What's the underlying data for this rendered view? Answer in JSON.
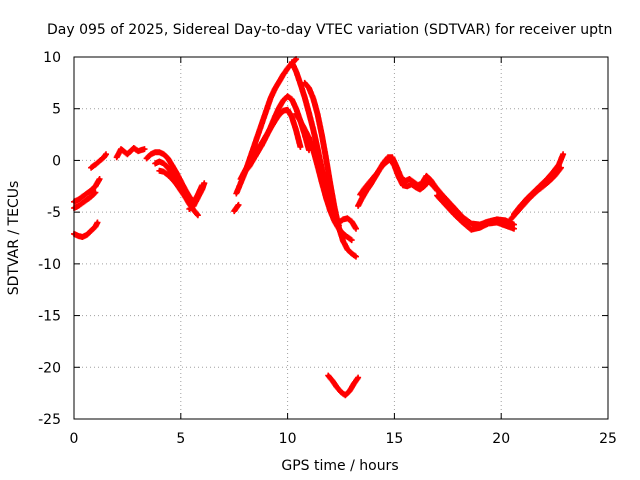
{
  "chart_data": {
    "type": "scatter",
    "title": "Day 095 of 2025, Sidereal Day-to-day VTEC variation (SDTVAR) for receiver uptn",
    "xlabel": "GPS time / hours",
    "ylabel": "SDTVAR / TECUs",
    "xlim": [
      0,
      25
    ],
    "ylim": [
      -25,
      10
    ],
    "xticks": [
      0,
      5,
      10,
      15,
      20,
      25
    ],
    "yticks": [
      -25,
      -20,
      -15,
      -10,
      -5,
      0,
      5,
      10
    ],
    "grid": true,
    "legend": "none",
    "marker": "plus",
    "color": "#ff0000",
    "series": [
      {
        "name": "s1",
        "x": [
          0.0,
          0.2,
          0.4,
          0.6,
          0.8,
          1.0,
          1.2
        ],
        "y": [
          -4.0,
          -3.8,
          -3.5,
          -3.2,
          -2.9,
          -2.5,
          -1.8
        ]
      },
      {
        "name": "s2",
        "x": [
          0.0,
          0.2,
          0.4,
          0.6,
          0.8,
          1.0
        ],
        "y": [
          -4.6,
          -4.4,
          -4.1,
          -3.8,
          -3.5,
          -3.1
        ]
      },
      {
        "name": "s3",
        "x": [
          0.0,
          0.2,
          0.4,
          0.6,
          0.8,
          1.0,
          1.1
        ],
        "y": [
          -7.1,
          -7.3,
          -7.4,
          -7.2,
          -6.8,
          -6.4,
          -6.0
        ]
      },
      {
        "name": "s4",
        "x": [
          0.8,
          1.0,
          1.4,
          1.5
        ],
        "y": [
          -0.7,
          -0.4,
          0.3,
          0.6
        ]
      },
      {
        "name": "s5",
        "x": [
          2.0,
          2.2,
          2.5,
          2.8,
          3.0,
          3.3
        ],
        "y": [
          0.3,
          1.1,
          0.6,
          1.2,
          0.9,
          1.1
        ]
      },
      {
        "name": "s6",
        "x": [
          3.4,
          3.6,
          3.8,
          4.0,
          4.2,
          4.4,
          4.6,
          4.8,
          5.0,
          5.2,
          5.4,
          5.6
        ],
        "y": [
          0.2,
          0.6,
          0.8,
          0.8,
          0.6,
          0.2,
          -0.5,
          -1.2,
          -2.0,
          -2.8,
          -3.5,
          -4.0
        ]
      },
      {
        "name": "s7",
        "x": [
          3.8,
          4.0,
          4.2,
          4.4,
          4.6,
          4.8,
          5.0,
          5.2,
          5.4,
          5.6,
          5.8
        ],
        "y": [
          -0.3,
          -0.1,
          -0.3,
          -0.7,
          -1.3,
          -2.0,
          -2.8,
          -3.5,
          -4.2,
          -4.8,
          -5.3
        ]
      },
      {
        "name": "s8",
        "x": [
          4.0,
          4.2,
          4.4,
          4.6,
          4.8,
          5.0,
          5.2,
          5.4,
          5.6,
          5.8,
          6.0
        ],
        "y": [
          -1.0,
          -1.1,
          -1.4,
          -1.8,
          -2.3,
          -2.9,
          -3.5,
          -4.0,
          -4.1,
          -3.3,
          -2.4
        ]
      },
      {
        "name": "s9",
        "x": [
          5.4,
          5.6,
          5.8,
          6.0,
          6.1
        ],
        "y": [
          -4.7,
          -4.4,
          -3.6,
          -2.8,
          -2.2
        ]
      },
      {
        "name": "s10",
        "x": [
          7.5,
          7.7
        ],
        "y": [
          -4.9,
          -4.3
        ]
      },
      {
        "name": "s11",
        "x": [
          7.6,
          7.8,
          8.0,
          8.2,
          8.4,
          8.6,
          8.8,
          9.0,
          9.2,
          9.4,
          9.6,
          9.8,
          10.0,
          10.2,
          10.4
        ],
        "y": [
          -3.2,
          -2.2,
          -1.2,
          0.0,
          1.2,
          2.4,
          3.6,
          4.8,
          6.0,
          6.9,
          7.6,
          8.3,
          8.9,
          9.4,
          9.8
        ]
      },
      {
        "name": "s12",
        "x": [
          7.8,
          8.0,
          8.2,
          8.4,
          8.6,
          8.8,
          9.0,
          9.2,
          9.4,
          9.6,
          9.8,
          10.0,
          10.2,
          10.4,
          10.6
        ],
        "y": [
          -1.8,
          -1.0,
          -0.3,
          0.4,
          1.1,
          1.7,
          2.4,
          3.1,
          3.8,
          4.4,
          4.8,
          4.9,
          4.2,
          2.9,
          1.3
        ]
      },
      {
        "name": "s13",
        "x": [
          8.0,
          8.2,
          8.4,
          8.6,
          8.8,
          9.0,
          9.2,
          9.4,
          9.6,
          9.8,
          10.0,
          10.2,
          10.4,
          10.6,
          10.8,
          11.0
        ],
        "y": [
          -1.1,
          -0.6,
          0.1,
          0.8,
          1.5,
          2.3,
          3.2,
          4.2,
          5.1,
          5.8,
          6.2,
          5.9,
          5.0,
          3.8,
          2.5,
          1.0
        ]
      },
      {
        "name": "s14",
        "x": [
          10.2,
          10.4,
          10.6,
          10.8,
          11.0,
          11.2,
          11.4,
          11.6,
          11.8,
          12.0,
          12.2,
          12.4
        ],
        "y": [
          9.5,
          8.6,
          7.4,
          6.1,
          4.6,
          3.0,
          1.2,
          -0.8,
          -2.6,
          -4.2,
          -5.4,
          -6.3
        ]
      },
      {
        "name": "s15",
        "x": [
          10.4,
          10.6,
          10.8,
          11.0,
          11.2,
          11.4,
          11.6,
          11.8,
          12.0,
          12.2,
          12.4,
          12.6,
          12.8,
          13.0
        ],
        "y": [
          4.5,
          3.8,
          3.0,
          2.2,
          1.0,
          -0.5,
          -2.1,
          -3.6,
          -4.9,
          -5.9,
          -6.6,
          -7.1,
          -7.4,
          -7.7
        ]
      },
      {
        "name": "s16",
        "x": [
          10.8,
          11.0,
          11.2,
          11.4,
          11.6,
          11.8,
          12.0,
          12.2,
          12.4,
          12.6,
          12.8,
          13.0,
          13.2
        ],
        "y": [
          7.5,
          7.0,
          6.0,
          4.5,
          2.5,
          0.2,
          -2.3,
          -4.6,
          -6.5,
          -7.8,
          -8.6,
          -9.0,
          -9.3
        ]
      },
      {
        "name": "s17",
        "x": [
          12.4,
          12.6,
          12.8,
          13.0,
          13.2
        ],
        "y": [
          -6.0,
          -5.7,
          -5.6,
          -5.9,
          -6.6
        ]
      },
      {
        "name": "s18",
        "x": [
          11.9,
          12.1,
          12.3,
          12.5,
          12.7,
          12.9,
          13.1,
          13.3
        ],
        "y": [
          -20.8,
          -21.3,
          -21.9,
          -22.4,
          -22.7,
          -22.3,
          -21.6,
          -21.0
        ]
      },
      {
        "name": "s19",
        "x": [
          13.3,
          13.5,
          13.7,
          13.9,
          14.1,
          14.3,
          14.5,
          14.7,
          14.9,
          15.1,
          15.3,
          15.5,
          15.7,
          15.9,
          16.1,
          16.3,
          16.5,
          16.7,
          16.9,
          17.1
        ],
        "y": [
          -4.4,
          -3.6,
          -2.9,
          -2.3,
          -1.6,
          -0.9,
          -0.2,
          0.3,
          0.3,
          -0.6,
          -1.6,
          -2.0,
          -1.8,
          -2.1,
          -2.4,
          -2.2,
          -1.5,
          -1.9,
          -2.5,
          -3.0
        ]
      },
      {
        "name": "s20",
        "x": [
          13.4,
          13.6,
          13.8,
          14.0,
          14.2,
          14.4,
          14.6,
          14.8,
          15.0,
          15.2,
          15.4,
          15.6,
          15.8,
          16.0,
          16.2,
          16.4,
          16.6,
          16.8,
          17.0
        ],
        "y": [
          -3.3,
          -2.7,
          -2.2,
          -1.7,
          -1.2,
          -0.6,
          -0.2,
          0.1,
          -0.5,
          -1.6,
          -2.4,
          -2.5,
          -2.3,
          -2.6,
          -2.8,
          -2.5,
          -2.0,
          -2.4,
          -2.9
        ]
      },
      {
        "name": "s21",
        "x": [
          17.0,
          17.4,
          17.8,
          18.2,
          18.6,
          19.0,
          19.4,
          19.8,
          20.2,
          20.6
        ],
        "y": [
          -2.8,
          -3.7,
          -4.6,
          -5.5,
          -6.1,
          -6.2,
          -5.9,
          -5.7,
          -5.8,
          -6.2
        ]
      },
      {
        "name": "s22",
        "x": [
          17.0,
          17.4,
          17.8,
          18.2,
          18.6,
          19.0,
          19.4,
          19.8,
          20.2,
          20.6
        ],
        "y": [
          -3.4,
          -4.3,
          -5.2,
          -6.0,
          -6.7,
          -6.5,
          -6.1,
          -6.0,
          -6.3,
          -6.6
        ]
      },
      {
        "name": "s23",
        "x": [
          20.6,
          20.9,
          21.2,
          21.5,
          21.8,
          22.1,
          22.4,
          22.7,
          22.9
        ],
        "y": [
          -5.2,
          -4.4,
          -3.7,
          -3.1,
          -2.5,
          -1.9,
          -1.2,
          -0.4,
          0.6
        ]
      },
      {
        "name": "s24",
        "x": [
          20.4,
          20.7,
          21.0,
          21.3,
          21.6,
          21.9,
          22.2,
          22.5,
          22.8
        ],
        "y": [
          -5.8,
          -5.1,
          -4.4,
          -3.7,
          -3.1,
          -2.6,
          -2.1,
          -1.5,
          -0.7
        ]
      }
    ]
  }
}
